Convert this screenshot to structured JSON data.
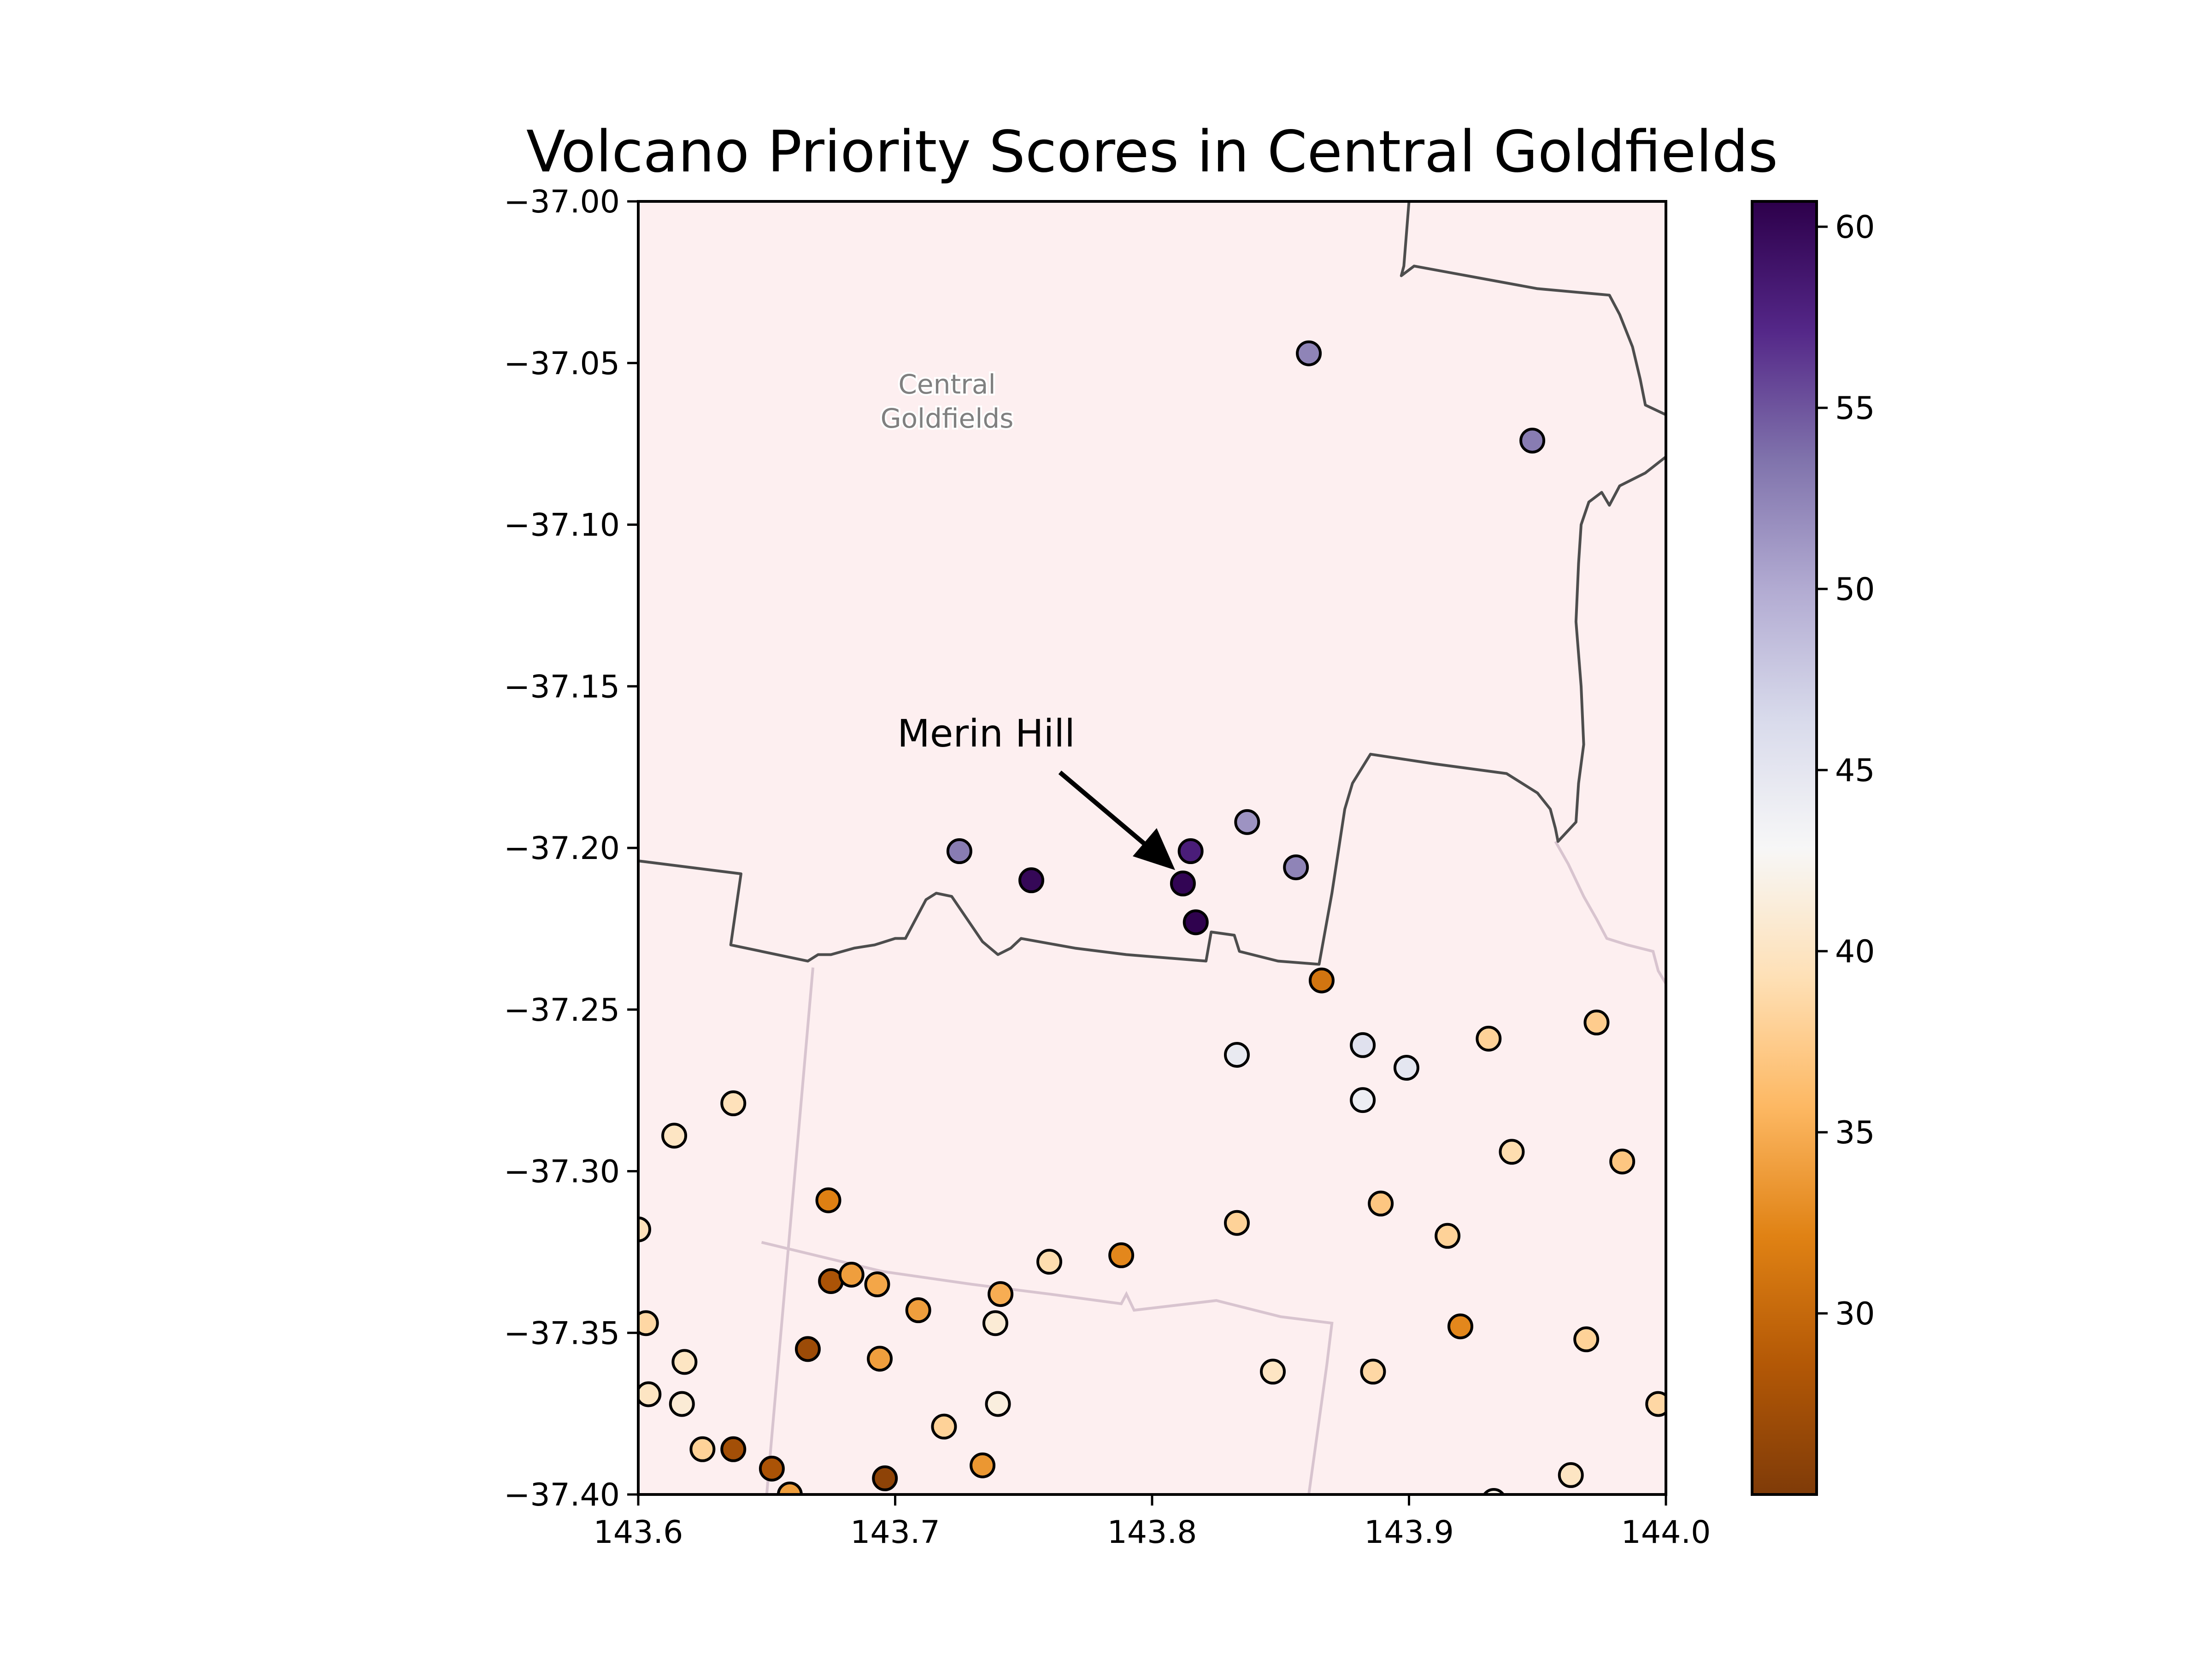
{
  "chart_data": {
    "type": "scatter",
    "title": "Volcano Priority Scores in Central Goldfields",
    "xlim": [
      143.6,
      144.0
    ],
    "ylim": [
      -37.4,
      -37.0
    ],
    "x_ticks": [
      "143.6",
      "143.7",
      "143.8",
      "143.9",
      "144.0"
    ],
    "y_ticks": [
      "−37.00",
      "−37.05",
      "−37.10",
      "−37.15",
      "−37.20",
      "−37.25",
      "−37.30",
      "−37.35",
      "−37.40"
    ],
    "region_label": [
      "Central",
      "Goldfields"
    ],
    "annotation": {
      "text": "Merin Hill",
      "lon": 143.812,
      "lat": -37.211
    },
    "colorbar": {
      "cmap": "PuOr",
      "vmin": 25.0,
      "vmax": 60.7,
      "ticks": [
        "30",
        "35",
        "40",
        "45",
        "50",
        "55",
        "60"
      ]
    },
    "boundaries": {
      "central_goldfields": [
        [
          143.6,
          -37.204
        ],
        [
          143.64,
          -37.208
        ],
        [
          143.636,
          -37.23
        ],
        [
          143.666,
          -37.235
        ],
        [
          143.67,
          -37.233
        ],
        [
          143.675,
          -37.233
        ],
        [
          143.684,
          -37.231
        ],
        [
          143.692,
          -37.23
        ],
        [
          143.7,
          -37.228
        ],
        [
          143.704,
          -37.228
        ],
        [
          143.708,
          -37.222
        ],
        [
          143.712,
          -37.216
        ],
        [
          143.716,
          -37.214
        ],
        [
          143.722,
          -37.215
        ],
        [
          143.728,
          -37.222
        ],
        [
          143.734,
          -37.229
        ],
        [
          143.74,
          -37.233
        ],
        [
          143.745,
          -37.231
        ],
        [
          143.749,
          -37.228
        ],
        [
          143.77,
          -37.231
        ],
        [
          143.79,
          -37.233
        ],
        [
          143.821,
          -37.235
        ],
        [
          143.823,
          -37.226
        ],
        [
          143.832,
          -37.227
        ],
        [
          143.834,
          -37.232
        ],
        [
          143.849,
          -37.235
        ],
        [
          143.865,
          -37.236
        ],
        [
          143.87,
          -37.214
        ],
        [
          143.875,
          -37.188
        ],
        [
          143.878,
          -37.18
        ],
        [
          143.885,
          -37.171
        ],
        [
          143.91,
          -37.174
        ],
        [
          143.938,
          -37.177
        ],
        [
          143.95,
          -37.183
        ],
        [
          143.955,
          -37.188
        ],
        [
          143.957,
          -37.194
        ],
        [
          143.958,
          -37.198
        ],
        [
          143.965,
          -37.192
        ],
        [
          143.966,
          -37.18
        ],
        [
          143.968,
          -37.168
        ],
        [
          143.967,
          -37.15
        ],
        [
          143.965,
          -37.13
        ],
        [
          143.966,
          -37.112
        ],
        [
          143.967,
          -37.1
        ],
        [
          143.97,
          -37.093
        ],
        [
          143.975,
          -37.09
        ],
        [
          143.978,
          -37.094
        ],
        [
          143.982,
          -37.088
        ],
        [
          143.992,
          -37.084
        ],
        [
          144.0,
          -37.079
        ]
      ],
      "northeast": [
        [
          143.9,
          -37.0
        ],
        [
          143.898,
          -37.02
        ],
        [
          143.897,
          -37.023
        ],
        [
          143.902,
          -37.02
        ],
        [
          143.95,
          -37.027
        ],
        [
          143.978,
          -37.029
        ],
        [
          143.982,
          -37.035
        ],
        [
          143.987,
          -37.045
        ],
        [
          143.99,
          -37.055
        ],
        [
          143.992,
          -37.063
        ],
        [
          144.0,
          -37.066
        ]
      ],
      "faint_west": [
        [
          143.668,
          -37.237
        ],
        [
          143.65,
          -37.4
        ]
      ],
      "faint_south": [
        [
          143.648,
          -37.322
        ],
        [
          143.695,
          -37.331
        ],
        [
          143.73,
          -37.335
        ],
        [
          143.76,
          -37.338
        ],
        [
          143.788,
          -37.341
        ],
        [
          143.79,
          -37.338
        ],
        [
          143.793,
          -37.343
        ],
        [
          143.825,
          -37.34
        ],
        [
          143.85,
          -37.345
        ],
        [
          143.87,
          -37.347
        ],
        [
          143.868,
          -37.36
        ],
        [
          143.861,
          -37.4
        ]
      ],
      "faint_east": [
        [
          143.957,
          -37.198
        ],
        [
          143.962,
          -37.205
        ],
        [
          143.968,
          -37.215
        ],
        [
          143.973,
          -37.222
        ],
        [
          143.977,
          -37.228
        ],
        [
          143.985,
          -37.23
        ],
        [
          143.995,
          -37.232
        ],
        [
          143.997,
          -37.238
        ],
        [
          144.0,
          -37.242
        ]
      ]
    },
    "points": [
      [
        143.861,
        -37.047,
        52.5
      ],
      [
        143.948,
        -37.074,
        53.0
      ],
      [
        143.725,
        -37.201,
        53.0
      ],
      [
        143.753,
        -37.21,
        60.0
      ],
      [
        143.812,
        -37.211,
        60.2
      ],
      [
        143.815,
        -37.201,
        58.0
      ],
      [
        143.817,
        -37.223,
        60.5
      ],
      [
        143.837,
        -37.192,
        51.5
      ],
      [
        143.856,
        -37.206,
        52.5
      ],
      [
        143.866,
        -37.241,
        31.0
      ],
      [
        143.833,
        -37.264,
        44.5
      ],
      [
        143.882,
        -37.261,
        45.5
      ],
      [
        143.899,
        -37.268,
        45.0
      ],
      [
        143.882,
        -37.278,
        44.0
      ],
      [
        143.931,
        -37.259,
        38.0
      ],
      [
        143.973,
        -37.254,
        37.5
      ],
      [
        143.637,
        -37.279,
        39.5
      ],
      [
        143.614,
        -37.289,
        40.0
      ],
      [
        143.674,
        -37.309,
        32.0
      ],
      [
        143.94,
        -37.294,
        39.0
      ],
      [
        143.983,
        -37.297,
        37.0
      ],
      [
        143.6,
        -37.318,
        39.5
      ],
      [
        143.889,
        -37.31,
        37.0
      ],
      [
        143.833,
        -37.316,
        38.0
      ],
      [
        143.915,
        -37.32,
        38.0
      ],
      [
        143.788,
        -37.326,
        32.5
      ],
      [
        143.76,
        -37.328,
        39.0
      ],
      [
        143.675,
        -37.334,
        28.0
      ],
      [
        143.683,
        -37.332,
        34.0
      ],
      [
        143.693,
        -37.335,
        34.5
      ],
      [
        143.741,
        -37.338,
        35.0
      ],
      [
        143.709,
        -37.343,
        34.0
      ],
      [
        143.603,
        -37.347,
        38.5
      ],
      [
        143.739,
        -37.347,
        41.0
      ],
      [
        143.92,
        -37.348,
        32.5
      ],
      [
        143.969,
        -37.352,
        38.0
      ],
      [
        143.666,
        -37.355,
        27.0
      ],
      [
        143.694,
        -37.358,
        34.0
      ],
      [
        143.618,
        -37.359,
        40.0
      ],
      [
        143.847,
        -37.362,
        40.0
      ],
      [
        143.886,
        -37.362,
        38.5
      ],
      [
        143.604,
        -37.369,
        40.0
      ],
      [
        143.617,
        -37.372,
        41.0
      ],
      [
        143.74,
        -37.372,
        41.5
      ],
      [
        143.997,
        -37.372,
        38.5
      ],
      [
        143.719,
        -37.379,
        38.0
      ],
      [
        143.625,
        -37.386,
        38.0
      ],
      [
        143.637,
        -37.386,
        27.5
      ],
      [
        143.652,
        -37.392,
        28.0
      ],
      [
        143.734,
        -37.391,
        33.5
      ],
      [
        143.963,
        -37.394,
        40.0
      ],
      [
        143.696,
        -37.395,
        26.0
      ],
      [
        143.659,
        -37.4,
        34.0
      ],
      [
        143.933,
        -37.402,
        42.0
      ]
    ]
  }
}
